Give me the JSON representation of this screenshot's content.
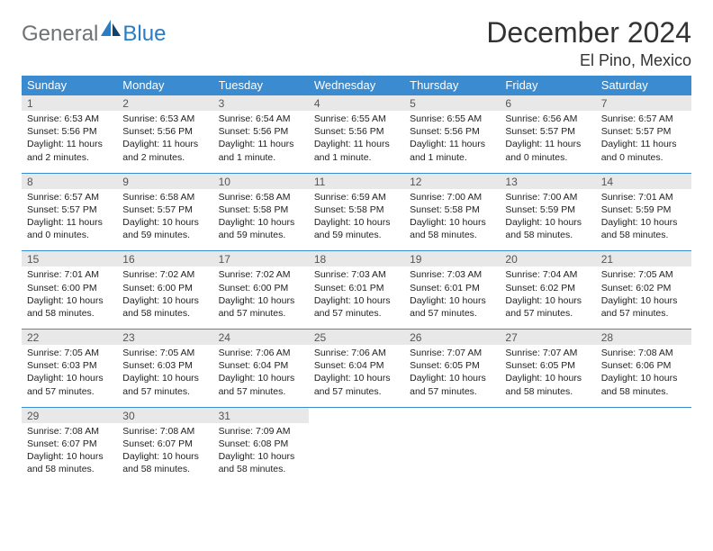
{
  "logo": {
    "general": "General",
    "blue": "Blue"
  },
  "title": "December 2024",
  "location": "El Pino, Mexico",
  "colors": {
    "header_bg": "#3a8bcf",
    "daynum_bg": "#e8e8e8",
    "rule": "#3a8bcf",
    "logo_gray": "#6f7275",
    "logo_blue": "#2a7cc4"
  },
  "days_of_week": [
    "Sunday",
    "Monday",
    "Tuesday",
    "Wednesday",
    "Thursday",
    "Friday",
    "Saturday"
  ],
  "weeks": [
    [
      {
        "n": "1",
        "sr": "6:53 AM",
        "ss": "5:56 PM",
        "dl": "11 hours and 2 minutes."
      },
      {
        "n": "2",
        "sr": "6:53 AM",
        "ss": "5:56 PM",
        "dl": "11 hours and 2 minutes."
      },
      {
        "n": "3",
        "sr": "6:54 AM",
        "ss": "5:56 PM",
        "dl": "11 hours and 1 minute."
      },
      {
        "n": "4",
        "sr": "6:55 AM",
        "ss": "5:56 PM",
        "dl": "11 hours and 1 minute."
      },
      {
        "n": "5",
        "sr": "6:55 AM",
        "ss": "5:56 PM",
        "dl": "11 hours and 1 minute."
      },
      {
        "n": "6",
        "sr": "6:56 AM",
        "ss": "5:57 PM",
        "dl": "11 hours and 0 minutes."
      },
      {
        "n": "7",
        "sr": "6:57 AM",
        "ss": "5:57 PM",
        "dl": "11 hours and 0 minutes."
      }
    ],
    [
      {
        "n": "8",
        "sr": "6:57 AM",
        "ss": "5:57 PM",
        "dl": "11 hours and 0 minutes."
      },
      {
        "n": "9",
        "sr": "6:58 AM",
        "ss": "5:57 PM",
        "dl": "10 hours and 59 minutes."
      },
      {
        "n": "10",
        "sr": "6:58 AM",
        "ss": "5:58 PM",
        "dl": "10 hours and 59 minutes."
      },
      {
        "n": "11",
        "sr": "6:59 AM",
        "ss": "5:58 PM",
        "dl": "10 hours and 59 minutes."
      },
      {
        "n": "12",
        "sr": "7:00 AM",
        "ss": "5:58 PM",
        "dl": "10 hours and 58 minutes."
      },
      {
        "n": "13",
        "sr": "7:00 AM",
        "ss": "5:59 PM",
        "dl": "10 hours and 58 minutes."
      },
      {
        "n": "14",
        "sr": "7:01 AM",
        "ss": "5:59 PM",
        "dl": "10 hours and 58 minutes."
      }
    ],
    [
      {
        "n": "15",
        "sr": "7:01 AM",
        "ss": "6:00 PM",
        "dl": "10 hours and 58 minutes."
      },
      {
        "n": "16",
        "sr": "7:02 AM",
        "ss": "6:00 PM",
        "dl": "10 hours and 58 minutes."
      },
      {
        "n": "17",
        "sr": "7:02 AM",
        "ss": "6:00 PM",
        "dl": "10 hours and 57 minutes."
      },
      {
        "n": "18",
        "sr": "7:03 AM",
        "ss": "6:01 PM",
        "dl": "10 hours and 57 minutes."
      },
      {
        "n": "19",
        "sr": "7:03 AM",
        "ss": "6:01 PM",
        "dl": "10 hours and 57 minutes."
      },
      {
        "n": "20",
        "sr": "7:04 AM",
        "ss": "6:02 PM",
        "dl": "10 hours and 57 minutes."
      },
      {
        "n": "21",
        "sr": "7:05 AM",
        "ss": "6:02 PM",
        "dl": "10 hours and 57 minutes."
      }
    ],
    [
      {
        "n": "22",
        "sr": "7:05 AM",
        "ss": "6:03 PM",
        "dl": "10 hours and 57 minutes."
      },
      {
        "n": "23",
        "sr": "7:05 AM",
        "ss": "6:03 PM",
        "dl": "10 hours and 57 minutes."
      },
      {
        "n": "24",
        "sr": "7:06 AM",
        "ss": "6:04 PM",
        "dl": "10 hours and 57 minutes."
      },
      {
        "n": "25",
        "sr": "7:06 AM",
        "ss": "6:04 PM",
        "dl": "10 hours and 57 minutes."
      },
      {
        "n": "26",
        "sr": "7:07 AM",
        "ss": "6:05 PM",
        "dl": "10 hours and 57 minutes."
      },
      {
        "n": "27",
        "sr": "7:07 AM",
        "ss": "6:05 PM",
        "dl": "10 hours and 58 minutes."
      },
      {
        "n": "28",
        "sr": "7:08 AM",
        "ss": "6:06 PM",
        "dl": "10 hours and 58 minutes."
      }
    ],
    [
      {
        "n": "29",
        "sr": "7:08 AM",
        "ss": "6:07 PM",
        "dl": "10 hours and 58 minutes."
      },
      {
        "n": "30",
        "sr": "7:08 AM",
        "ss": "6:07 PM",
        "dl": "10 hours and 58 minutes."
      },
      {
        "n": "31",
        "sr": "7:09 AM",
        "ss": "6:08 PM",
        "dl": "10 hours and 58 minutes."
      },
      null,
      null,
      null,
      null
    ]
  ]
}
